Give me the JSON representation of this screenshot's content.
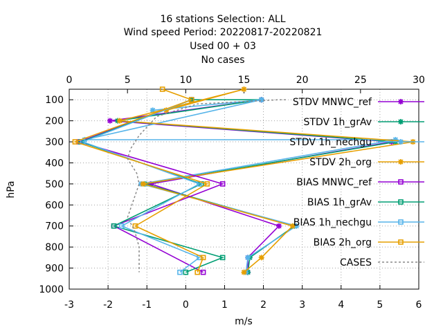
{
  "chart_data": {
    "type": "line",
    "title_lines": [
      "16 stations Selection: ALL",
      "Wind speed  Period: 20220817-20220821",
      "Used  00 + 03",
      "No cases"
    ],
    "xlabel": "m/s",
    "ylabel": "hPa",
    "xlim": [
      -3,
      6
    ],
    "ylim": [
      1000,
      50
    ],
    "x2lim": [
      0,
      30
    ],
    "xticks": [
      "-3",
      "-2",
      "-1",
      "0",
      "1",
      "2",
      "3",
      "4",
      "5",
      "6"
    ],
    "x2ticks": [
      "0",
      "5",
      "10",
      "15",
      "20",
      "25",
      "30"
    ],
    "yticks": [
      "100",
      "200",
      "300",
      "400",
      "500",
      "600",
      "700",
      "800",
      "900",
      "1000"
    ],
    "grid": true,
    "legend_position": "top-right",
    "series": [
      {
        "name": "STDV MNWC_ref",
        "color": "#9400d3",
        "marker": "star",
        "points": [
          [
            1.95,
            100
          ],
          [
            1.95,
            100
          ],
          [
            -1.95,
            200
          ],
          [
            5.3,
            300
          ],
          [
            -0.9,
            500
          ],
          [
            2.4,
            700
          ],
          [
            1.6,
            850
          ],
          [
            1.6,
            920
          ]
        ]
      },
      {
        "name": "STDV 1h_grAv",
        "color": "#009e73",
        "marker": "star",
        "points": [
          [
            0.15,
            100
          ],
          [
            1.95,
            100
          ],
          [
            -1.75,
            200
          ],
          [
            5.4,
            300
          ],
          [
            -1.05,
            500
          ],
          [
            2.8,
            700
          ],
          [
            1.65,
            850
          ],
          [
            1.6,
            920
          ]
        ]
      },
      {
        "name": "STDV 1h_nechgu",
        "color": "#56b4e9",
        "marker": "star",
        "points": [
          [
            -0.85,
            150
          ],
          [
            1.95,
            100
          ],
          [
            -2.6,
            290
          ],
          [
            5.4,
            290
          ],
          [
            -1.15,
            500
          ],
          [
            2.85,
            700
          ],
          [
            1.6,
            850
          ],
          [
            1.55,
            920
          ]
        ]
      },
      {
        "name": "STDV 2h_org",
        "color": "#e69f00",
        "marker": "star",
        "points": [
          [
            -0.5,
            150
          ],
          [
            1.5,
            50
          ],
          [
            -1.7,
            200
          ],
          [
            5.85,
            300
          ],
          [
            -1.1,
            500
          ],
          [
            2.75,
            700
          ],
          [
            1.95,
            850
          ],
          [
            1.5,
            920
          ]
        ]
      },
      {
        "name": "BIAS MNWC_ref",
        "color": "#9400d3",
        "marker": "square",
        "points": [
          [
            0.15,
            100
          ],
          [
            -2.75,
            300
          ],
          [
            0.95,
            500
          ],
          [
            -1.85,
            700
          ],
          [
            0.45,
            920
          ]
        ]
      },
      {
        "name": "BIAS 1h_grAv",
        "color": "#009e73",
        "marker": "square",
        "points": [
          [
            0.15,
            100
          ],
          [
            -2.7,
            300
          ],
          [
            0.4,
            500
          ],
          [
            -1.85,
            700
          ],
          [
            0.95,
            850
          ],
          [
            0.0,
            920
          ]
        ]
      },
      {
        "name": "BIAS 1h_nechgu",
        "color": "#56b4e9",
        "marker": "square",
        "points": [
          [
            0.15,
            100
          ],
          [
            -2.65,
            300
          ],
          [
            0.35,
            500
          ],
          [
            -1.65,
            700
          ],
          [
            0.35,
            850
          ],
          [
            -0.15,
            920
          ]
        ]
      },
      {
        "name": "BIAS 2h_org",
        "color": "#e69f00",
        "marker": "square",
        "points": [
          [
            -0.6,
            50
          ],
          [
            0.15,
            100
          ],
          [
            -2.85,
            300
          ],
          [
            0.55,
            500
          ],
          [
            -1.3,
            700
          ],
          [
            0.45,
            850
          ],
          [
            0.3,
            920
          ]
        ]
      },
      {
        "name": "CASES",
        "color": "#888888",
        "marker": "none",
        "dashed": true,
        "points": [
          [
            18.6,
            100
          ],
          [
            18.0,
            100
          ],
          [
            11.0,
            120
          ],
          [
            7.5,
            180
          ],
          [
            6.0,
            270
          ],
          [
            5.3,
            330
          ],
          [
            5.0,
            380
          ],
          [
            5.8,
            450
          ],
          [
            6.0,
            500
          ],
          [
            5.5,
            580
          ],
          [
            5.0,
            660
          ],
          [
            5.6,
            720
          ],
          [
            6.0,
            800
          ],
          [
            6.0,
            860
          ],
          [
            6.0,
            920
          ]
        ]
      }
    ]
  }
}
